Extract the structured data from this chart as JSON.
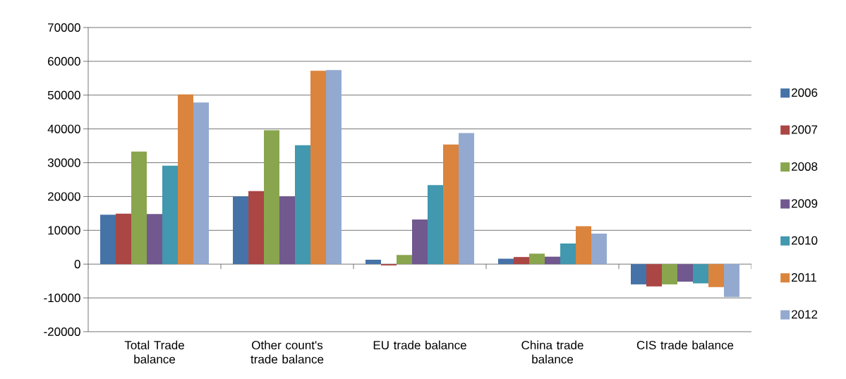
{
  "chart_data": {
    "type": "bar",
    "categories": [
      "Total Trade balance",
      "Other count's trade balance",
      "EU trade balance",
      "China trade balance",
      "CIS trade balance"
    ],
    "series": [
      {
        "name": "2006",
        "color": "#4572a7",
        "values": [
          14600,
          20000,
          1300,
          1600,
          -6000
        ]
      },
      {
        "name": "2007",
        "color": "#aa4643",
        "values": [
          14900,
          21600,
          -400,
          2100,
          -6600
        ]
      },
      {
        "name": "2008",
        "color": "#89a54e",
        "values": [
          33300,
          39600,
          2700,
          3100,
          -6000
        ]
      },
      {
        "name": "2009",
        "color": "#71588f",
        "values": [
          14800,
          20000,
          13200,
          2200,
          -5200
        ]
      },
      {
        "name": "2010",
        "color": "#4198af",
        "values": [
          29100,
          35200,
          23400,
          6100,
          -5700
        ]
      },
      {
        "name": "2011",
        "color": "#db843d",
        "values": [
          50200,
          57200,
          35400,
          11200,
          -6800
        ]
      },
      {
        "name": "2012",
        "color": "#93a9cf",
        "values": [
          47800,
          57400,
          38800,
          9000,
          -9700
        ]
      }
    ],
    "ylim": [
      -20000,
      70000
    ],
    "yticks": [
      -20000,
      -10000,
      0,
      10000,
      20000,
      30000,
      40000,
      50000,
      60000,
      70000
    ],
    "grid": "y",
    "legend": "right"
  }
}
